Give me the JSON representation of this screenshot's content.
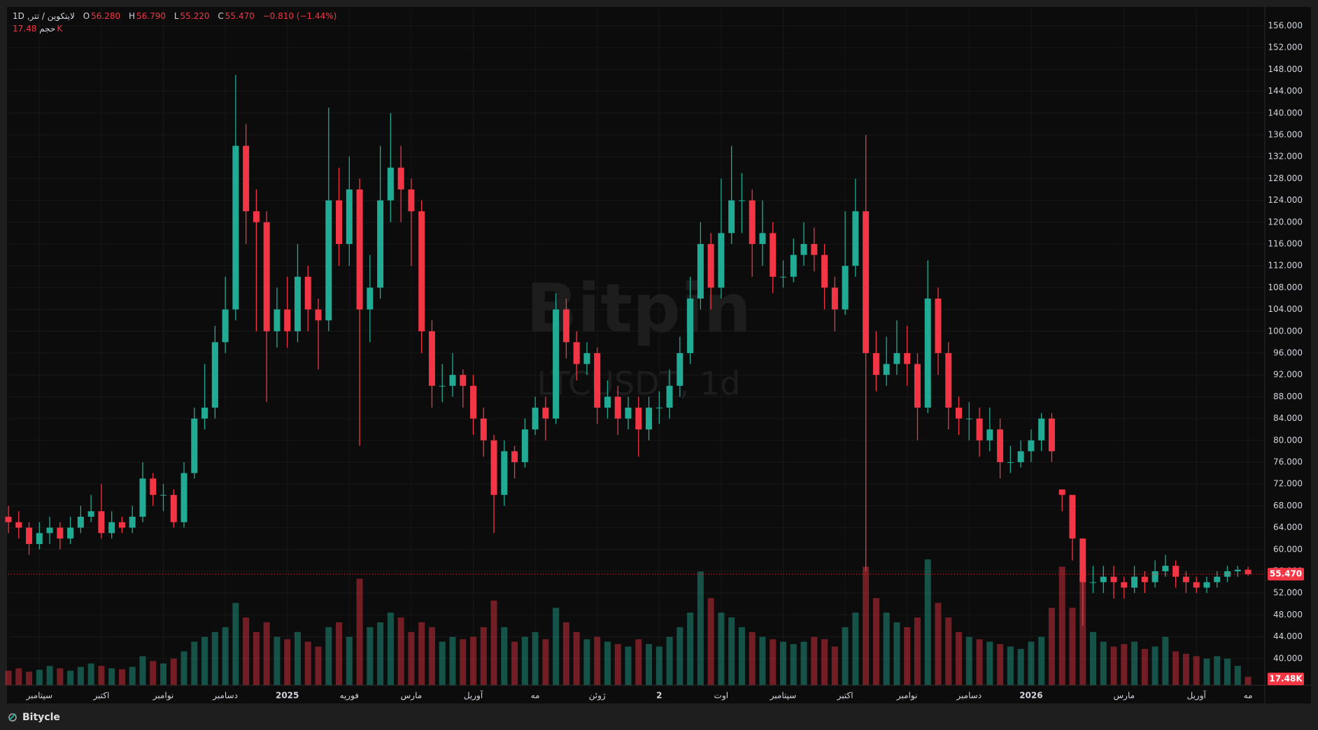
{
  "chart_data": {
    "type": "candlestick",
    "symbol": "لایتکوین / تتر, 1D",
    "legend_keys": [
      "O",
      "H",
      "L",
      "C"
    ],
    "legend_values": [
      "56.280",
      "56.790",
      "55.220",
      "55.470"
    ],
    "change": "−0.810 (−1.44%)",
    "volume_title": "حجم",
    "volume_label": "17.48K",
    "price_tag": "55.470",
    "watermark": "Bitpin",
    "watermark_sub": "LTCUSDT, 1d",
    "footer": "Bitycle",
    "up_color": "#22ab94",
    "down_color": "#f23645",
    "grid": true,
    "ylim": [
      35.1,
      159.2
    ],
    "yticks": [
      {
        "value": 40,
        "label": "40.000"
      },
      {
        "value": 44,
        "label": "44.000"
      },
      {
        "value": 48,
        "label": "48.000"
      },
      {
        "value": 52,
        "label": "52.000"
      },
      {
        "value": 56,
        "label": "56.000"
      },
      {
        "value": 60,
        "label": "60.000"
      },
      {
        "value": 64,
        "label": "64.000"
      },
      {
        "value": 68,
        "label": "68.000"
      },
      {
        "value": 72,
        "label": "72.000"
      },
      {
        "value": 76,
        "label": "76.000"
      },
      {
        "value": 80,
        "label": "80.000"
      },
      {
        "value": 84,
        "label": "84.000"
      },
      {
        "value": 88,
        "label": "88.000"
      },
      {
        "value": 92,
        "label": "92.000"
      },
      {
        "value": 96,
        "label": "96.000"
      },
      {
        "value": 100,
        "label": "100.000"
      },
      {
        "value": 104,
        "label": "104.000"
      },
      {
        "value": 108,
        "label": "108.000"
      },
      {
        "value": 112,
        "label": "112.000"
      },
      {
        "value": 116,
        "label": "116.000"
      },
      {
        "value": 120,
        "label": "120.000"
      },
      {
        "value": 124,
        "label": "124.000"
      },
      {
        "value": 128,
        "label": "128.000"
      },
      {
        "value": 132,
        "label": "132.000"
      },
      {
        "value": 136,
        "label": "136.000"
      },
      {
        "value": 140,
        "label": "140.000"
      },
      {
        "value": 144,
        "label": "144.000"
      },
      {
        "value": 148,
        "label": "148.000"
      },
      {
        "value": 152,
        "label": "152.000"
      },
      {
        "value": 156,
        "label": "156.000"
      }
    ],
    "last_price": 55.47,
    "categories": [
      null,
      null,
      null,
      "سپتامبر",
      null,
      null,
      null,
      null,
      null,
      "اکتبر",
      null,
      null,
      null,
      null,
      null,
      "نوامبر",
      null,
      null,
      null,
      null,
      null,
      "دسامبر",
      null,
      null,
      null,
      null,
      null,
      "2025",
      null,
      null,
      null,
      null,
      null,
      "فوریه",
      null,
      null,
      null,
      null,
      null,
      "مارس",
      null,
      null,
      null,
      null,
      null,
      "آوریل",
      null,
      null,
      null,
      null,
      null,
      "مه",
      null,
      null,
      null,
      null,
      null,
      "ژوئن",
      null,
      null,
      null,
      null,
      null,
      "2",
      null,
      null,
      null,
      null,
      null,
      "اوت",
      null,
      null,
      null,
      null,
      null,
      "سپتامبر",
      null,
      null,
      null,
      null,
      null,
      "اکتبر",
      null,
      null,
      null,
      null,
      null,
      "نوامبر",
      null,
      null,
      null,
      null,
      null,
      "دسامبر",
      null,
      null,
      null,
      null,
      null,
      "2026",
      null,
      null,
      null,
      null,
      null,
      null,
      null,
      null,
      "مارس",
      null,
      null,
      null,
      null,
      null,
      null,
      "آوریل",
      null,
      null,
      null,
      null,
      "مه"
    ],
    "ohlc": [
      [
        66,
        68,
        63,
        65
      ],
      [
        65,
        67,
        62,
        64
      ],
      [
        64,
        65,
        59,
        61
      ],
      [
        61,
        65,
        60,
        63
      ],
      [
        63,
        66,
        61,
        64
      ],
      [
        64,
        65,
        60,
        62
      ],
      [
        62,
        66,
        61,
        64
      ],
      [
        64,
        68,
        63,
        66
      ],
      [
        66,
        70,
        65,
        67
      ],
      [
        67,
        72,
        62,
        63
      ],
      [
        63,
        67,
        62,
        65
      ],
      [
        65,
        66,
        63,
        64
      ],
      [
        64,
        68,
        63,
        66
      ],
      [
        66,
        76,
        65,
        73
      ],
      [
        73,
        74,
        68,
        70
      ],
      [
        70,
        72,
        67,
        70
      ],
      [
        70,
        71,
        64,
        65
      ],
      [
        65,
        76,
        64,
        74
      ],
      [
        74,
        86,
        73,
        84
      ],
      [
        84,
        94,
        82,
        86
      ],
      [
        86,
        101,
        84,
        98
      ],
      [
        98,
        110,
        96,
        104
      ],
      [
        104,
        147,
        102,
        134
      ],
      [
        134,
        138,
        116,
        122
      ],
      [
        122,
        126,
        100,
        120
      ],
      [
        120,
        122,
        87,
        100
      ],
      [
        100,
        108,
        97,
        104
      ],
      [
        104,
        110,
        97,
        100
      ],
      [
        100,
        116,
        98,
        110
      ],
      [
        110,
        112,
        100,
        104
      ],
      [
        104,
        106,
        93,
        102
      ],
      [
        102,
        141,
        100,
        124
      ],
      [
        124,
        130,
        112,
        116
      ],
      [
        116,
        132,
        112,
        126
      ],
      [
        126,
        128,
        79,
        104
      ],
      [
        104,
        114,
        98,
        108
      ],
      [
        108,
        134,
        106,
        124
      ],
      [
        124,
        140,
        120,
        130
      ],
      [
        130,
        134,
        120,
        126
      ],
      [
        126,
        128,
        112,
        122
      ],
      [
        122,
        124,
        96,
        100
      ],
      [
        100,
        102,
        86,
        90
      ],
      [
        90,
        94,
        87,
        90
      ],
      [
        90,
        96,
        88,
        92
      ],
      [
        92,
        93,
        86,
        90
      ],
      [
        90,
        92,
        81,
        84
      ],
      [
        84,
        86,
        77,
        80
      ],
      [
        80,
        81,
        63,
        70
      ],
      [
        70,
        80,
        68,
        78
      ],
      [
        78,
        79,
        73,
        76
      ],
      [
        76,
        84,
        75,
        82
      ],
      [
        82,
        88,
        81,
        86
      ],
      [
        86,
        88,
        80,
        84
      ],
      [
        84,
        107,
        83,
        104
      ],
      [
        104,
        106,
        95,
        98
      ],
      [
        98,
        100,
        91,
        94
      ],
      [
        94,
        98,
        92,
        96
      ],
      [
        96,
        97,
        83,
        86
      ],
      [
        86,
        91,
        84,
        88
      ],
      [
        88,
        90,
        81,
        84
      ],
      [
        84,
        88,
        82,
        86
      ],
      [
        86,
        88,
        77,
        82
      ],
      [
        82,
        88,
        80,
        86
      ],
      [
        86,
        89,
        83,
        86
      ],
      [
        86,
        93,
        84,
        90
      ],
      [
        90,
        99,
        88,
        96
      ],
      [
        96,
        110,
        94,
        106
      ],
      [
        106,
        120,
        104,
        116
      ],
      [
        116,
        118,
        104,
        108
      ],
      [
        108,
        128,
        106,
        118
      ],
      [
        118,
        134,
        116,
        124
      ],
      [
        124,
        129,
        118,
        124
      ],
      [
        124,
        126,
        110,
        116
      ],
      [
        116,
        124,
        112,
        118
      ],
      [
        118,
        120,
        107,
        110
      ],
      [
        110,
        113,
        108,
        110
      ],
      [
        110,
        117,
        109,
        114
      ],
      [
        114,
        120,
        112,
        116
      ],
      [
        116,
        119,
        111,
        114
      ],
      [
        114,
        116,
        104,
        108
      ],
      [
        108,
        110,
        100,
        104
      ],
      [
        104,
        122,
        103,
        112
      ],
      [
        112,
        128,
        110,
        122
      ],
      [
        122,
        136,
        56,
        96
      ],
      [
        96,
        100,
        89,
        92
      ],
      [
        92,
        99,
        90,
        94
      ],
      [
        94,
        102,
        92,
        96
      ],
      [
        96,
        101,
        90,
        94
      ],
      [
        94,
        96,
        80,
        86
      ],
      [
        86,
        113,
        85,
        106
      ],
      [
        106,
        108,
        92,
        96
      ],
      [
        96,
        98,
        82,
        86
      ],
      [
        86,
        88,
        81,
        84
      ],
      [
        84,
        87,
        80,
        84
      ],
      [
        84,
        86,
        77,
        80
      ],
      [
        80,
        86,
        78,
        82
      ],
      [
        82,
        84,
        73,
        76
      ],
      [
        76,
        79,
        74,
        76
      ],
      [
        76,
        80,
        75,
        78
      ],
      [
        78,
        82,
        76,
        80
      ],
      [
        80,
        85,
        78,
        84
      ],
      [
        84,
        85,
        76,
        78
      ],
      [
        71,
        71,
        67,
        70
      ],
      [
        70,
        70,
        58,
        62
      ],
      [
        62,
        62,
        46,
        54
      ],
      [
        54,
        57,
        52,
        54
      ],
      [
        54,
        57,
        52,
        55
      ],
      [
        55,
        57,
        51,
        54
      ],
      [
        54,
        55,
        51,
        53
      ],
      [
        53,
        57,
        52,
        55
      ],
      [
        55,
        56,
        52,
        54
      ],
      [
        54,
        58,
        53,
        56
      ],
      [
        56,
        59,
        55,
        57
      ],
      [
        57,
        58,
        53,
        55
      ],
      [
        55,
        56,
        52,
        54
      ],
      [
        54,
        55,
        52,
        53
      ],
      [
        53,
        55,
        52,
        54
      ],
      [
        54,
        56,
        53,
        55
      ],
      [
        55,
        57,
        54,
        56
      ],
      [
        56,
        57,
        55,
        56.28
      ],
      [
        56.28,
        56.79,
        55.22,
        55.47
      ]
    ],
    "volumes": [
      30,
      35,
      28,
      32,
      40,
      35,
      30,
      38,
      45,
      40,
      35,
      33,
      38,
      60,
      50,
      45,
      55,
      70,
      90,
      100,
      110,
      120,
      170,
      140,
      110,
      130,
      100,
      95,
      110,
      90,
      80,
      120,
      130,
      100,
      220,
      120,
      130,
      150,
      140,
      110,
      130,
      120,
      90,
      100,
      95,
      100,
      120,
      175,
      120,
      90,
      100,
      110,
      95,
      160,
      130,
      110,
      95,
      100,
      90,
      85,
      80,
      95,
      85,
      80,
      100,
      120,
      150,
      235,
      180,
      150,
      140,
      120,
      110,
      100,
      95,
      90,
      85,
      90,
      100,
      95,
      80,
      120,
      150,
      245,
      180,
      150,
      130,
      120,
      140,
      260,
      170,
      140,
      110,
      100,
      95,
      90,
      85,
      80,
      75,
      90,
      100,
      160,
      245,
      160,
      250,
      110,
      90,
      80,
      85,
      90,
      75,
      80,
      100,
      70,
      65,
      60,
      55,
      60,
      55,
      40,
      17.48
    ]
  }
}
